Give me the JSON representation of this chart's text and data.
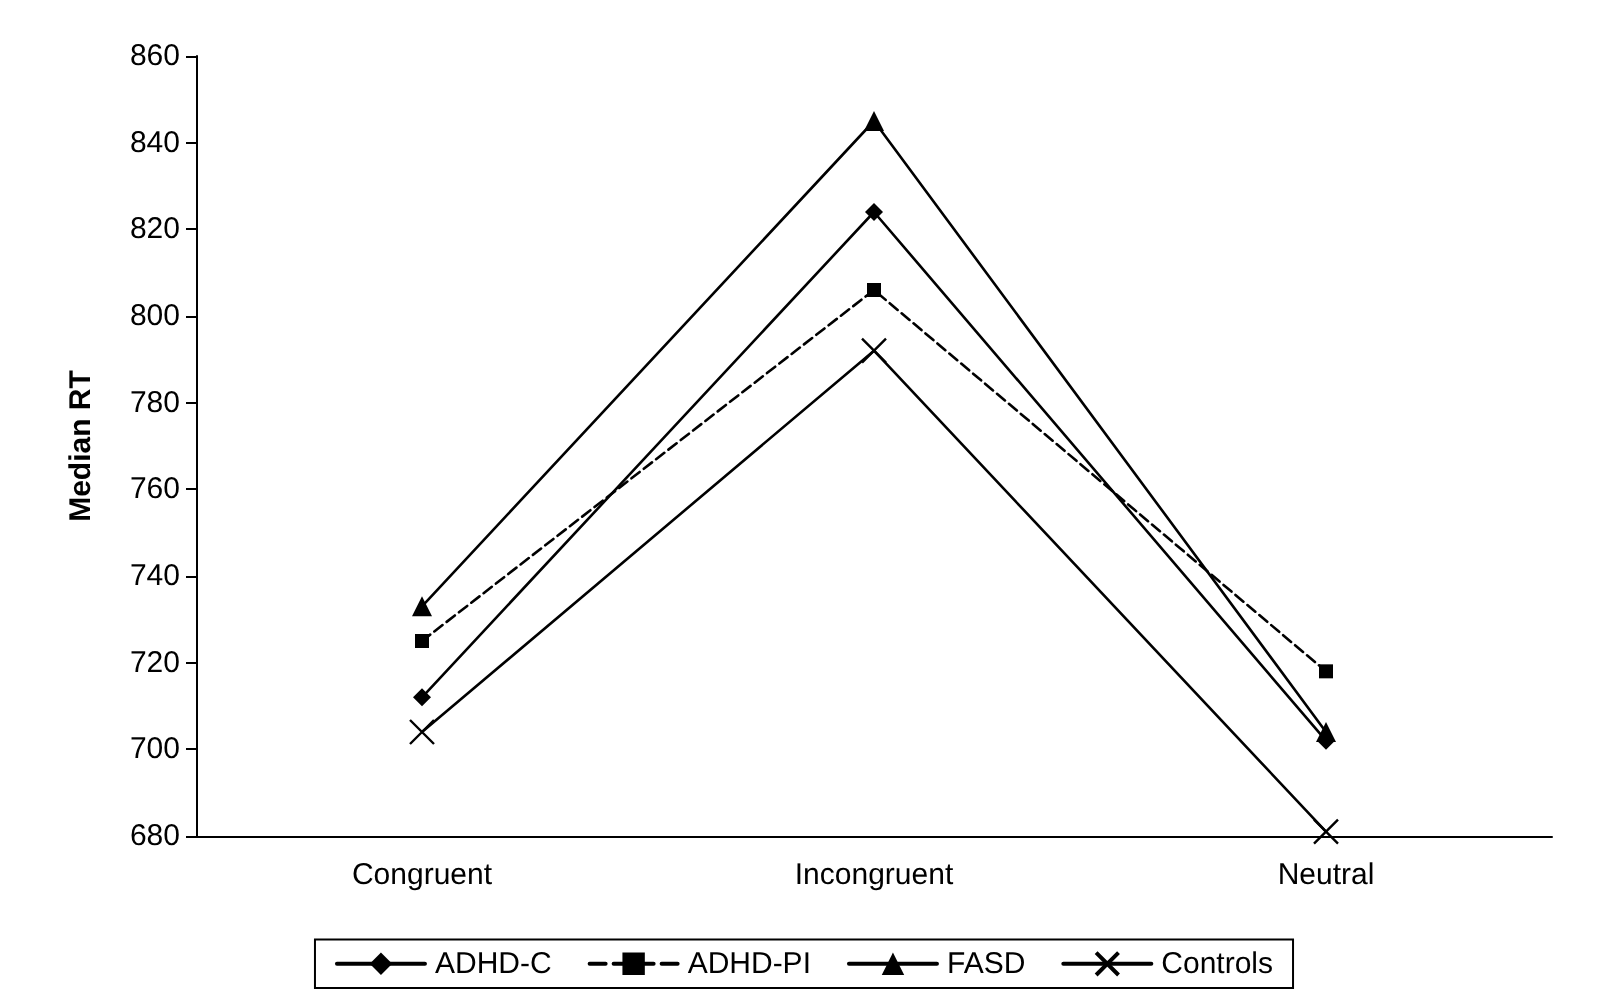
{
  "chart_data": {
    "type": "line",
    "ylabel": "Median RT",
    "categories": [
      "Congruent",
      "Incongruent",
      "Neutral"
    ],
    "series": [
      {
        "name": "ADHD-C",
        "color": "#000000",
        "marker": "diamond",
        "line_style": "solid",
        "values": [
          712,
          824,
          702
        ]
      },
      {
        "name": "ADHD-PI",
        "color": "#000000",
        "marker": "square",
        "line_style": "dashed",
        "values": [
          725,
          806,
          718
        ]
      },
      {
        "name": "FASD",
        "color": "#000000",
        "marker": "triangle",
        "line_style": "solid",
        "values": [
          733,
          845,
          704
        ]
      },
      {
        "name": "Controls",
        "color": "#000000",
        "marker": "cross",
        "line_style": "solid",
        "values": [
          704,
          792,
          681
        ]
      }
    ],
    "ylim": [
      680,
      860
    ],
    "yticks": [
      680,
      700,
      720,
      740,
      760,
      780,
      800,
      820,
      840,
      860
    ],
    "grid": false,
    "legend": "bottom"
  }
}
